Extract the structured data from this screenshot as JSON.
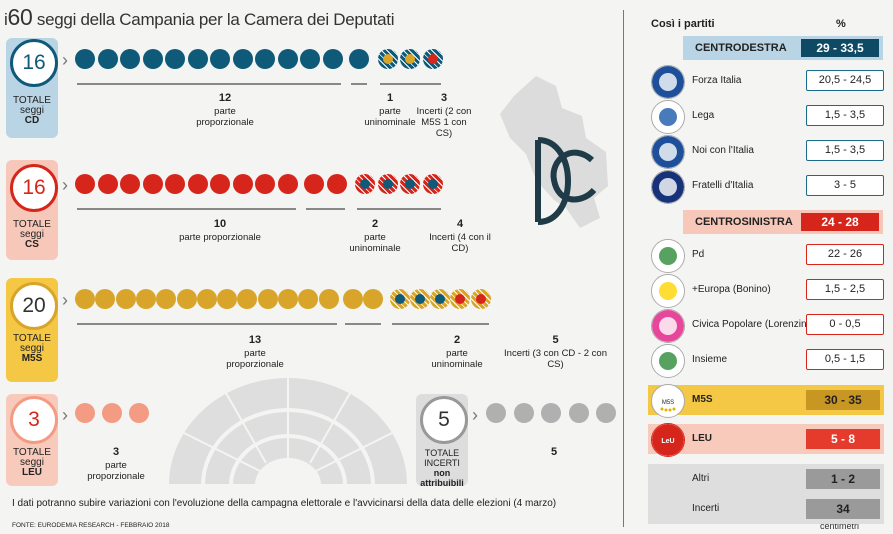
{
  "header": {
    "prefix": "i",
    "number": "60",
    "rest": "seggi della Campania per la Camera dei Deputati"
  },
  "colors": {
    "cd": "#0e5a78",
    "cs": "#d6261c",
    "m5s": "#d8a52a",
    "leu": "#f49b84",
    "incerti": "#b0b0b0",
    "cd_bg": "#b9d4e4",
    "cs_bg": "#f7c8b9",
    "m5s_bg": "#f4c744",
    "leu_bg": "#f8cabc"
  },
  "chart_data": [
    {
      "type": "table",
      "id": "cd",
      "total": "16",
      "label": "TOTALE seggi CD",
      "groups": [
        {
          "count": "12",
          "label": "parte proporzionale",
          "color": "cd"
        },
        {
          "count": "1",
          "label": "parte uninominale",
          "color": "cd"
        },
        {
          "count": "3",
          "label": "Incerti (2 con M5S 1 con CS)",
          "dots": [
            "m5s",
            "m5s",
            "cs"
          ]
        }
      ]
    },
    {
      "type": "table",
      "id": "cs",
      "total": "16",
      "label": "TOTALE seggi CS",
      "groups": [
        {
          "count": "10",
          "label": "parte proporzionale",
          "color": "cs"
        },
        {
          "count": "2",
          "label": "parte uninominale",
          "color": "cs"
        },
        {
          "count": "4",
          "label": "Incerti (4 con il CD)",
          "dots": [
            "cd",
            "cd",
            "cd",
            "cd"
          ]
        }
      ]
    },
    {
      "type": "table",
      "id": "m5s",
      "total": "20",
      "label": "TOTALE seggi M5S",
      "groups": [
        {
          "count": "13",
          "label": "parte proporzionale",
          "color": "m5s"
        },
        {
          "count": "2",
          "label": "parte uninominale",
          "color": "m5s"
        },
        {
          "count": "5",
          "label": "Incerti (3 con CD - 2 con CS)",
          "dots": [
            "cd",
            "cd",
            "cd",
            "cs",
            "cs"
          ]
        }
      ]
    },
    {
      "type": "table",
      "id": "leu",
      "total": "3",
      "label": "TOTALE seggi LEU",
      "groups": [
        {
          "count": "3",
          "label": "parte proporzionale",
          "color": "leu"
        }
      ]
    },
    {
      "type": "table",
      "id": "incerti",
      "total": "5",
      "label": "TOTALE INCERTI non attribuibili",
      "groups": [
        {
          "count": "5",
          "label": "",
          "color": "incerti"
        }
      ]
    }
  ],
  "labels": {
    "cd": [
      "TOTALE",
      "seggi",
      "CD"
    ],
    "cs": [
      "TOTALE",
      "seggi",
      "CS"
    ],
    "m5s": [
      "TOTALE",
      "seggi",
      "M5S"
    ],
    "leu": [
      "TOTALE",
      "seggi",
      "LEU"
    ],
    "inc": [
      "TOTALE",
      "INCERTI",
      "non",
      "attribuibili"
    ]
  },
  "note": "I dati potranno subire variazioni con l'evoluzione della campagna elettorale e l'avvicinarsi della data delle elezioni (4 marzo)",
  "source": "FONTE: EURODEMIA RESEARCH - FEBBRAIO 2018",
  "brand": "centimetri",
  "panel": {
    "title": "Così i partiti",
    "pct": "%",
    "centrodestra": {
      "name": "CENTRODESTRA",
      "value": "29 - 33,5"
    },
    "cd_parties": [
      {
        "name": "Forza Italia",
        "value": "20,5 - 24,5",
        "logo": "forza-italia-logo"
      },
      {
        "name": "Lega",
        "value": "1,5 - 3,5",
        "logo": "lega-logo"
      },
      {
        "name": "Noi con l'Italia",
        "value": "1,5 - 3,5",
        "logo": "noi-con-italia-logo"
      },
      {
        "name": "Fratelli d'Italia",
        "value": "3 - 5",
        "logo": "fratelli-italia-logo"
      }
    ],
    "centrosinistra": {
      "name": "CENTROSINISTRA",
      "value": "24 - 28"
    },
    "cs_parties": [
      {
        "name": "Pd",
        "value": "22 - 26",
        "logo": "pd-logo"
      },
      {
        "name": "+Europa (Bonino)",
        "value": "1,5 - 2,5",
        "logo": "piu-europa-logo"
      },
      {
        "name": "Civica Popolare (Lorenzin)",
        "value": "0 - 0,5",
        "logo": "civica-popolare-logo"
      },
      {
        "name": "Insieme",
        "value": "0,5 - 1,5",
        "logo": "insieme-logo"
      }
    ],
    "m5s": {
      "name": "M5S",
      "value": "30 - 35"
    },
    "leu": {
      "name": "LEU",
      "value": "5 - 8"
    },
    "altri": {
      "name": "Altri",
      "value": "1 - 2"
    },
    "incerti": {
      "name": "Incerti",
      "value": "34"
    }
  }
}
